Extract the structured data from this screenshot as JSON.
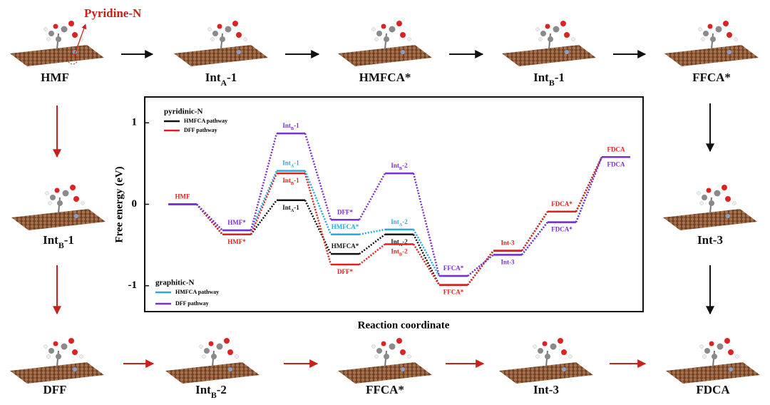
{
  "scheme": {
    "annotation": "Pyridine-N",
    "top": [
      "HMF",
      [
        "Int",
        "A",
        "-1"
      ],
      "HMFCA*",
      [
        "Int",
        "B",
        "-1"
      ],
      "FFCA*"
    ],
    "left": [
      [
        "Int",
        "B",
        "-1"
      ]
    ],
    "right": [
      "Int-3"
    ],
    "bottom": [
      "DFF",
      [
        "Int",
        "B",
        "-2"
      ],
      "FFCA*",
      "Int-3",
      "FDCA"
    ]
  },
  "chart_data": {
    "type": "line",
    "ylabel": "Free energy (eV)",
    "xlabel": "Reaction coordinate",
    "categories": [
      null,
      null,
      null,
      null,
      null,
      null,
      null,
      null,
      null
    ],
    "ylim": [
      -1.3,
      1.3
    ],
    "yticks": [
      1,
      0,
      -1
    ],
    "legend_titles": [
      "pyridinic-N",
      "graphitic-N"
    ],
    "series": [
      {
        "name": "HMFCA pathway",
        "color": "#111111",
        "values": [
          0,
          -0.37,
          0.05,
          -0.61,
          -0.37,
          -0.99,
          -0.57,
          -0.09,
          0.58
        ],
        "point_labels": [
          null,
          null,
          [
            "Int",
            "A",
            "-1"
          ],
          "HMFCA*",
          [
            "Int",
            "A",
            "-2"
          ],
          null,
          null,
          null,
          null
        ]
      },
      {
        "name": "DFF pathway",
        "color": "#e0201b",
        "values": [
          0,
          -0.37,
          0.38,
          -0.74,
          -0.49,
          -0.99,
          -0.57,
          -0.09,
          0.58
        ],
        "point_labels": [
          "HMF",
          "HMF*",
          [
            "Int",
            "B",
            "-1"
          ],
          "DFF*",
          [
            "Int",
            "B",
            "-2"
          ],
          "FFCA*",
          "Int-3",
          "FDCA*",
          "FDCA"
        ]
      },
      {
        "name": "HMFCA pathway",
        "color": "#2aa7e0",
        "values": [
          0,
          -0.32,
          0.41,
          -0.37,
          -0.31,
          -0.88,
          -0.62,
          -0.22,
          0.58
        ],
        "point_labels": [
          null,
          null,
          [
            "Int",
            "A",
            "-1"
          ],
          "HMFCA*",
          [
            "Int",
            "A",
            "-2"
          ],
          null,
          null,
          null,
          null
        ]
      },
      {
        "name": "DFF pathway",
        "color": "#7a2fd0",
        "values": [
          0,
          -0.32,
          0.87,
          -0.19,
          0.38,
          -0.88,
          -0.62,
          -0.22,
          0.58
        ],
        "point_labels": [
          null,
          "HMF*",
          [
            "Int",
            "B",
            "-1"
          ],
          "DFF*",
          [
            "Int",
            "B",
            "-2"
          ],
          "FFCA*",
          "Int-3",
          "FDCA*",
          "FDCA"
        ]
      }
    ]
  }
}
